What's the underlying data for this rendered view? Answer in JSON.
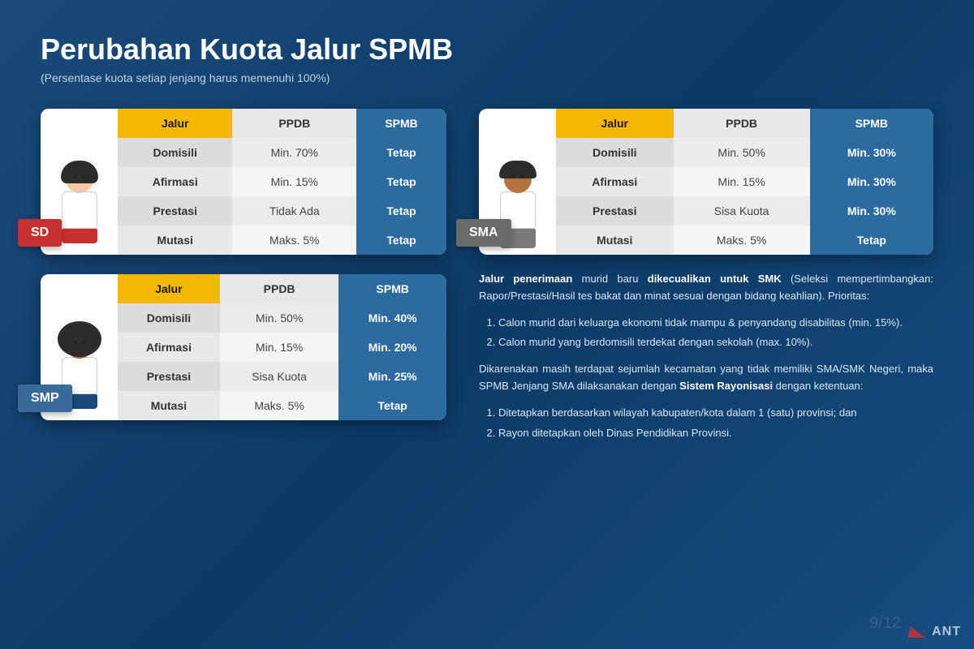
{
  "title": "Perubahan Kuota Jalur SPMB",
  "subtitle": "(Persentase kuota setiap jenjang harus memenuhi 100%)",
  "headers": {
    "jalur": "Jalur",
    "ppdb": "PPDB",
    "spmb": "SPMB"
  },
  "levels": {
    "sd": {
      "badge": "SD",
      "rows": [
        {
          "jalur": "Domisili",
          "ppdb": "Min. 70%",
          "spmb": "Tetap"
        },
        {
          "jalur": "Afirmasi",
          "ppdb": "Min. 15%",
          "spmb": "Tetap"
        },
        {
          "jalur": "Prestasi",
          "ppdb": "Tidak Ada",
          "spmb": "Tetap"
        },
        {
          "jalur": "Mutasi",
          "ppdb": "Maks. 5%",
          "spmb": "Tetap"
        }
      ]
    },
    "smp": {
      "badge": "SMP",
      "rows": [
        {
          "jalur": "Domisili",
          "ppdb": "Min. 50%",
          "spmb": "Min. 40%"
        },
        {
          "jalur": "Afirmasi",
          "ppdb": "Min. 15%",
          "spmb": "Min. 20%"
        },
        {
          "jalur": "Prestasi",
          "ppdb": "Sisa Kuota",
          "spmb": "Min. 25%"
        },
        {
          "jalur": "Mutasi",
          "ppdb": "Maks. 5%",
          "spmb": "Tetap"
        }
      ]
    },
    "sma": {
      "badge": "SMA",
      "rows": [
        {
          "jalur": "Domisili",
          "ppdb": "Min. 50%",
          "spmb": "Min. 30%"
        },
        {
          "jalur": "Afirmasi",
          "ppdb": "Min. 15%",
          "spmb": "Min. 30%"
        },
        {
          "jalur": "Prestasi",
          "ppdb": "Sisa Kuota",
          "spmb": "Min. 30%"
        },
        {
          "jalur": "Mutasi",
          "ppdb": "Maks. 5%",
          "spmb": "Tetap"
        }
      ]
    }
  },
  "notes": {
    "p1a": "Jalur penerimaan",
    "p1b": " murid baru ",
    "p1c": "dikecualikan untuk SMK",
    "p1d": " (Seleksi mempertimbangkan: Rapor/Prestasi/Hasil tes bakat dan minat sesuai dengan bidang keahlian). Prioritas:",
    "li1": "Calon murid dari keluarga ekonomi tidak mampu & penyandang disabilitas (min. 15%).",
    "li2": "Calon murid yang berdomisili terdekat dengan sekolah (max. 10%).",
    "p2a": "Dikarenakan masih terdapat sejumlah kecamatan yang tidak memiliki SMA/SMK Negeri, maka SPMB Jenjang SMA dilaksanakan dengan ",
    "p2b": "Sistem Rayonisasi",
    "p2c": " dengan ketentuan:",
    "li3": "Ditetapkan berdasarkan wilayah kabupaten/kota dalam 1 (satu) provinsi; dan",
    "li4": "Rayon ditetapkan oleh Dinas Pendidikan Provinsi."
  },
  "pagenum": "9/12",
  "logo": "ANT"
}
